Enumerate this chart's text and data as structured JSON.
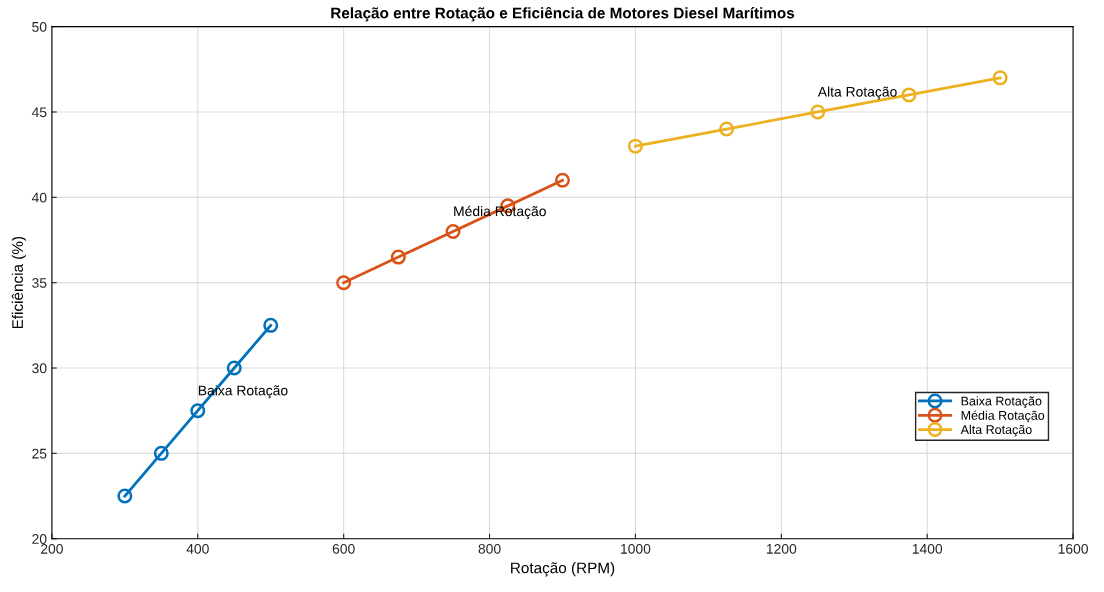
{
  "chart_data": {
    "type": "line",
    "title": "Relação entre Rotação e Eficiência de Motores Diesel Marítimos",
    "xlabel": "Rotação (RPM)",
    "ylabel": "Eficiência (%)",
    "series": [
      {
        "name": "Baixa Rotação",
        "color": "#0072bd",
        "x": [
          300,
          350,
          400,
          450,
          500
        ],
        "values": [
          22.5,
          25,
          27.5,
          30,
          32.5
        ]
      },
      {
        "name": "Média Rotação",
        "color": "#d95319",
        "x": [
          600,
          675,
          750,
          825,
          900
        ],
        "values": [
          35,
          36.5,
          38,
          39.5,
          41
        ]
      },
      {
        "name": "Alta Rotação",
        "color": "#edb120",
        "x": [
          1000,
          1125,
          1250,
          1375,
          1500
        ],
        "values": [
          43,
          44,
          45,
          46,
          47
        ]
      }
    ],
    "annotations": [
      {
        "text": "Baixa Rotação",
        "x": 400,
        "y": 27.5
      },
      {
        "text": "Média Rotação",
        "x": 750,
        "y": 38
      },
      {
        "text": "Alta Rotação",
        "x": 1250,
        "y": 45
      }
    ],
    "xlim": [
      200,
      1600
    ],
    "xticks": [
      200,
      400,
      600,
      800,
      1000,
      1200,
      1400,
      1600
    ],
    "ylim": [
      20,
      50
    ],
    "yticks": [
      20,
      25,
      30,
      35,
      40,
      45,
      50
    ],
    "grid": true,
    "legend": "bottom right",
    "marker": "circle",
    "line_style": "solid"
  }
}
